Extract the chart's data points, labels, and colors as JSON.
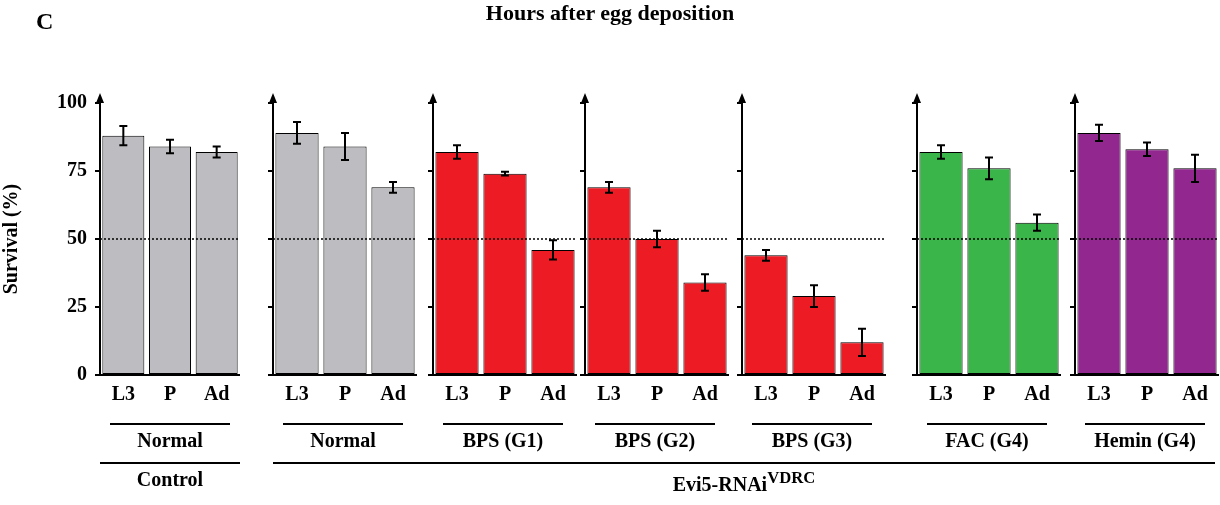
{
  "chart_data": [
    {
      "type": "bar",
      "ylabel": "Survival (%)",
      "xlabel": "Normal",
      "categories": [
        "L3",
        "P",
        "Ad"
      ],
      "values": [
        88,
        84,
        82
      ],
      "errors": [
        3.5,
        2.5,
        2
      ],
      "color": "#bdbcc1",
      "ylim": [
        0,
        100
      ],
      "yticks": [
        0,
        25,
        50,
        75,
        100
      ],
      "ref_lines": [
        {
          "axis": "y",
          "value": 50,
          "line_style": "dotted"
        }
      ],
      "annotations": [
        "C",
        "Hours after egg deposition",
        "Control"
      ]
    },
    {
      "type": "bar",
      "xlabel": "Normal",
      "categories": [
        "L3",
        "P",
        "Ad"
      ],
      "values": [
        89,
        84,
        69
      ],
      "errors": [
        4,
        5,
        2
      ],
      "color": "#bdbcc1",
      "ylim": [
        0,
        100
      ],
      "yticks": [
        0,
        25,
        50,
        75,
        100
      ],
      "tick_labels": "x",
      "ref_lines": [
        {
          "axis": "y",
          "value": 50,
          "line_style": "dotted"
        }
      ],
      "annotations": [
        "Evi5-RNAi$^{VDRC}$"
      ]
    },
    {
      "type": "bar",
      "xlabel": "BPS (G1)",
      "categories": [
        "L3",
        "P",
        "Ad"
      ],
      "values": [
        82,
        74,
        46
      ],
      "errors": [
        2.5,
        0.7,
        3.5
      ],
      "color": "#ed1c24",
      "ylim": [
        0,
        100
      ],
      "yticks": [
        0,
        25,
        50,
        75,
        100
      ],
      "tick_labels": "x",
      "ref_lines": [
        {
          "axis": "y",
          "value": 50,
          "line_style": "dotted"
        }
      ]
    },
    {
      "type": "bar",
      "xlabel": "BPS (G2)",
      "categories": [
        "L3",
        "P",
        "Ad"
      ],
      "values": [
        69,
        50,
        34
      ],
      "errors": [
        2,
        3,
        3
      ],
      "color": "#ed1c24",
      "ylim": [
        0,
        100
      ],
      "yticks": [
        0,
        25,
        50,
        75,
        100
      ],
      "tick_labels": "x",
      "ref_lines": [
        {
          "axis": "y",
          "value": 50,
          "line_style": "dotted"
        }
      ]
    },
    {
      "type": "bar",
      "xlabel": "BPS (G3)",
      "categories": [
        "L3",
        "P",
        "Ad"
      ],
      "values": [
        44,
        29,
        12
      ],
      "errors": [
        2,
        4,
        5
      ],
      "color": "#ed1c24",
      "ylim": [
        0,
        100
      ],
      "yticks": [
        0,
        25,
        50,
        75,
        100
      ],
      "tick_labels": "x",
      "ref_lines": [
        {
          "axis": "y",
          "value": 50,
          "line_style": "dotted"
        }
      ]
    },
    {
      "type": "bar",
      "xlabel": "FAC (G4)",
      "categories": [
        "L3",
        "P",
        "Ad"
      ],
      "values": [
        82,
        76,
        56
      ],
      "errors": [
        2.5,
        4,
        3
      ],
      "color": "#39b54a",
      "ylim": [
        0,
        100
      ],
      "yticks": [
        0,
        25,
        50,
        75,
        100
      ],
      "tick_labels": "x",
      "ref_lines": [
        {
          "axis": "y",
          "value": 50,
          "line_style": "dotted"
        }
      ]
    },
    {
      "type": "bar",
      "xlabel": "Hemin (G4)",
      "categories": [
        "L3",
        "P",
        "Ad"
      ],
      "values": [
        89,
        83,
        76
      ],
      "errors": [
        3,
        2.5,
        5
      ],
      "color": "#92278f",
      "ylim": [
        0,
        100
      ],
      "yticks": [
        0,
        25,
        50,
        75,
        100
      ],
      "tick_labels": "x",
      "ref_lines": [
        {
          "axis": "y",
          "value": 50,
          "line_style": "dotted"
        }
      ]
    }
  ]
}
